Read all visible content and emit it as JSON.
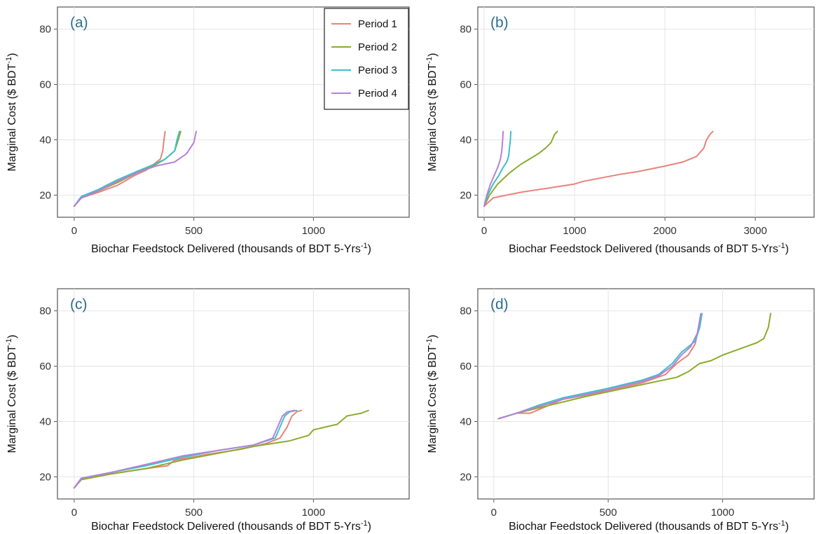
{
  "colors": {
    "period_1": "#e8837c",
    "period_2": "#8aac2e",
    "period_3": "#3dbfcc",
    "period_4": "#b681d6"
  },
  "legend": {
    "placement": "top-right of panel (a)",
    "entries": [
      "Period 1",
      "Period 2",
      "Period 3",
      "Period 4"
    ]
  },
  "chart_data": [
    {
      "type": "line",
      "panel_label": "(a)",
      "xlabel": "Biochar Feedstock Delivered (thousands of BDT 5-Yrs",
      "xlabel_sup": "-1",
      "xlabel_close": ")",
      "ylabel": "Marginal Cost ($ BDT",
      "ylabel_sup": "-1",
      "ylabel_close": ")",
      "xlim": [
        -70,
        1400
      ],
      "ylim": [
        12,
        88
      ],
      "xticks": [
        0,
        500,
        1000
      ],
      "xtick_labels": [
        "0",
        "500",
        "1000"
      ],
      "yticks": [
        20,
        40,
        60,
        80
      ],
      "ytick_labels": [
        "20",
        "40",
        "60",
        "80"
      ],
      "grid": true,
      "series": [
        {
          "name": "Period 1",
          "x": [
            0,
            30,
            100,
            180,
            250,
            300,
            330,
            360,
            370,
            375,
            380
          ],
          "y": [
            16,
            19,
            21,
            23.5,
            27,
            29,
            31,
            33,
            36,
            40,
            43
          ]
        },
        {
          "name": "Period 2",
          "x": [
            0,
            30,
            100,
            180,
            260,
            330,
            380,
            420,
            435,
            445
          ],
          "y": [
            16,
            19,
            21.5,
            24.5,
            28,
            30.5,
            33,
            36,
            40,
            43
          ]
        },
        {
          "name": "Period 3",
          "x": [
            0,
            30,
            100,
            180,
            260,
            330,
            380,
            420,
            430,
            440
          ],
          "y": [
            16,
            19.5,
            22,
            25.5,
            28.5,
            31,
            33,
            36,
            40,
            43
          ]
        },
        {
          "name": "Period 4",
          "x": [
            0,
            30,
            100,
            180,
            260,
            340,
            420,
            470,
            500,
            510
          ],
          "y": [
            16,
            19,
            21.5,
            25,
            28,
            30.5,
            32,
            35,
            39,
            43
          ]
        }
      ]
    },
    {
      "type": "line",
      "panel_label": "(b)",
      "xlabel": "Biochar Feedstock Delivered (thousands of BDT 5-Yrs",
      "xlabel_sup": "-1",
      "xlabel_close": ")",
      "ylabel": "Marginal Cost ($ BDT",
      "ylabel_sup": "-1",
      "ylabel_close": ")",
      "xlim": [
        -70,
        3650
      ],
      "ylim": [
        12,
        88
      ],
      "xticks": [
        0,
        1000,
        2000,
        3000
      ],
      "xtick_labels": [
        "0",
        "1000",
        "2000",
        "3000"
      ],
      "yticks": [
        20,
        40,
        60,
        80
      ],
      "ytick_labels": [
        "20",
        "40",
        "60",
        "80"
      ],
      "grid": true,
      "series": [
        {
          "name": "Period 1",
          "x": [
            0,
            100,
            400,
            700,
            1000,
            1100,
            1500,
            1700,
            2000,
            2200,
            2350,
            2430,
            2460,
            2500,
            2530
          ],
          "y": [
            16,
            19,
            21,
            22.5,
            24,
            25,
            27.5,
            28.5,
            30.5,
            32,
            34,
            37,
            40,
            42,
            43
          ]
        },
        {
          "name": "Period 2",
          "x": [
            0,
            60,
            150,
            280,
            400,
            500,
            600,
            680,
            740,
            780,
            810
          ],
          "y": [
            16,
            20,
            24,
            28,
            31,
            33,
            35,
            37,
            39,
            42,
            43
          ]
        },
        {
          "name": "Period 3",
          "x": [
            0,
            40,
            100,
            160,
            210,
            250,
            270,
            280,
            290,
            295
          ],
          "y": [
            16,
            20,
            24,
            27,
            30,
            32,
            34,
            37,
            40,
            43
          ]
        },
        {
          "name": "Period 4",
          "x": [
            0,
            30,
            70,
            110,
            150,
            180,
            195,
            205,
            210
          ],
          "y": [
            16,
            20,
            24,
            27,
            30,
            33,
            36,
            40,
            43
          ]
        }
      ]
    },
    {
      "type": "line",
      "panel_label": "(c)",
      "xlabel": "Biochar Feedstock Delivered (thousands of BDT 5-Yrs",
      "xlabel_sup": "-1",
      "xlabel_close": ")",
      "ylabel": "Marginal Cost ($ BDT",
      "ylabel_sup": "-1",
      "ylabel_close": ")",
      "xlim": [
        -70,
        1400
      ],
      "ylim": [
        12,
        88
      ],
      "xticks": [
        0,
        500,
        1000
      ],
      "xtick_labels": [
        "0",
        "500",
        "1000"
      ],
      "yticks": [
        20,
        40,
        60,
        80
      ],
      "ytick_labels": [
        "20",
        "40",
        "60",
        "80"
      ],
      "grid": true,
      "series": [
        {
          "name": "Period 1",
          "x": [
            0,
            30,
            150,
            300,
            390,
            420,
            550,
            700,
            800,
            860,
            890,
            910,
            930,
            950
          ],
          "y": [
            16,
            19,
            21,
            23,
            24,
            26,
            28,
            30,
            32,
            34,
            38,
            42,
            43.5,
            44
          ]
        },
        {
          "name": "Period 2",
          "x": [
            0,
            30,
            150,
            300,
            450,
            600,
            750,
            900,
            980,
            1000,
            1100,
            1140,
            1200,
            1230
          ],
          "y": [
            16,
            19,
            21,
            23,
            26,
            28.5,
            31,
            33,
            35,
            37,
            39,
            42,
            43,
            44
          ]
        },
        {
          "name": "Period 3",
          "x": [
            0,
            30,
            150,
            300,
            450,
            600,
            750,
            840,
            860,
            880,
            900,
            930
          ],
          "y": [
            16,
            19.5,
            21.5,
            24,
            27,
            29.5,
            31.5,
            34,
            38,
            42,
            43.5,
            44
          ]
        },
        {
          "name": "Period 4",
          "x": [
            0,
            30,
            150,
            300,
            450,
            600,
            750,
            830,
            850,
            870,
            890,
            920
          ],
          "y": [
            16,
            19.5,
            21.5,
            24.5,
            27.5,
            29.5,
            31.5,
            34,
            38,
            42,
            43.5,
            44
          ]
        }
      ]
    },
    {
      "type": "line",
      "panel_label": "(d)",
      "xlabel": "Biochar Feedstock Delivered (thousands of BDT 5-Yrs",
      "xlabel_sup": "-1",
      "xlabel_close": ")",
      "ylabel": "Marginal Cost ($ BDT",
      "ylabel_sup": "-1",
      "ylabel_close": ")",
      "xlim": [
        -70,
        1400
      ],
      "ylim": [
        12,
        88
      ],
      "xticks": [
        0,
        500,
        1000
      ],
      "xtick_labels": [
        "0",
        "500",
        "1000"
      ],
      "yticks": [
        20,
        40,
        60,
        80
      ],
      "ytick_labels": [
        "20",
        "40",
        "60",
        "80"
      ],
      "grid": true,
      "series": [
        {
          "name": "Period 1",
          "x": [
            20,
            100,
            160,
            300,
            500,
            650,
            750,
            800,
            850,
            880,
            895,
            905
          ],
          "y": [
            41,
            43,
            43,
            48,
            51,
            54,
            57,
            61,
            64,
            68,
            74,
            79
          ]
        },
        {
          "name": "Period 2",
          "x": [
            20,
            100,
            200,
            400,
            600,
            800,
            850,
            900,
            950,
            1000,
            1100,
            1150,
            1180,
            1200,
            1210
          ],
          "y": [
            41,
            43,
            45,
            49,
            52.5,
            56,
            58,
            61,
            62,
            64,
            67,
            68.5,
            70,
            74,
            79
          ]
        },
        {
          "name": "Period 3",
          "x": [
            20,
            100,
            200,
            300,
            500,
            650,
            720,
            780,
            820,
            850,
            880,
            900,
            910
          ],
          "y": [
            41,
            43,
            46,
            48.5,
            52,
            55,
            57,
            61,
            65,
            67,
            69,
            74,
            79
          ]
        },
        {
          "name": "Period 4",
          "x": [
            20,
            100,
            200,
            300,
            500,
            650,
            720,
            780,
            820,
            860,
            890,
            905
          ],
          "y": [
            41,
            43,
            45.5,
            48,
            51.5,
            54.5,
            56.5,
            60,
            64,
            67,
            72,
            79
          ]
        }
      ]
    }
  ]
}
